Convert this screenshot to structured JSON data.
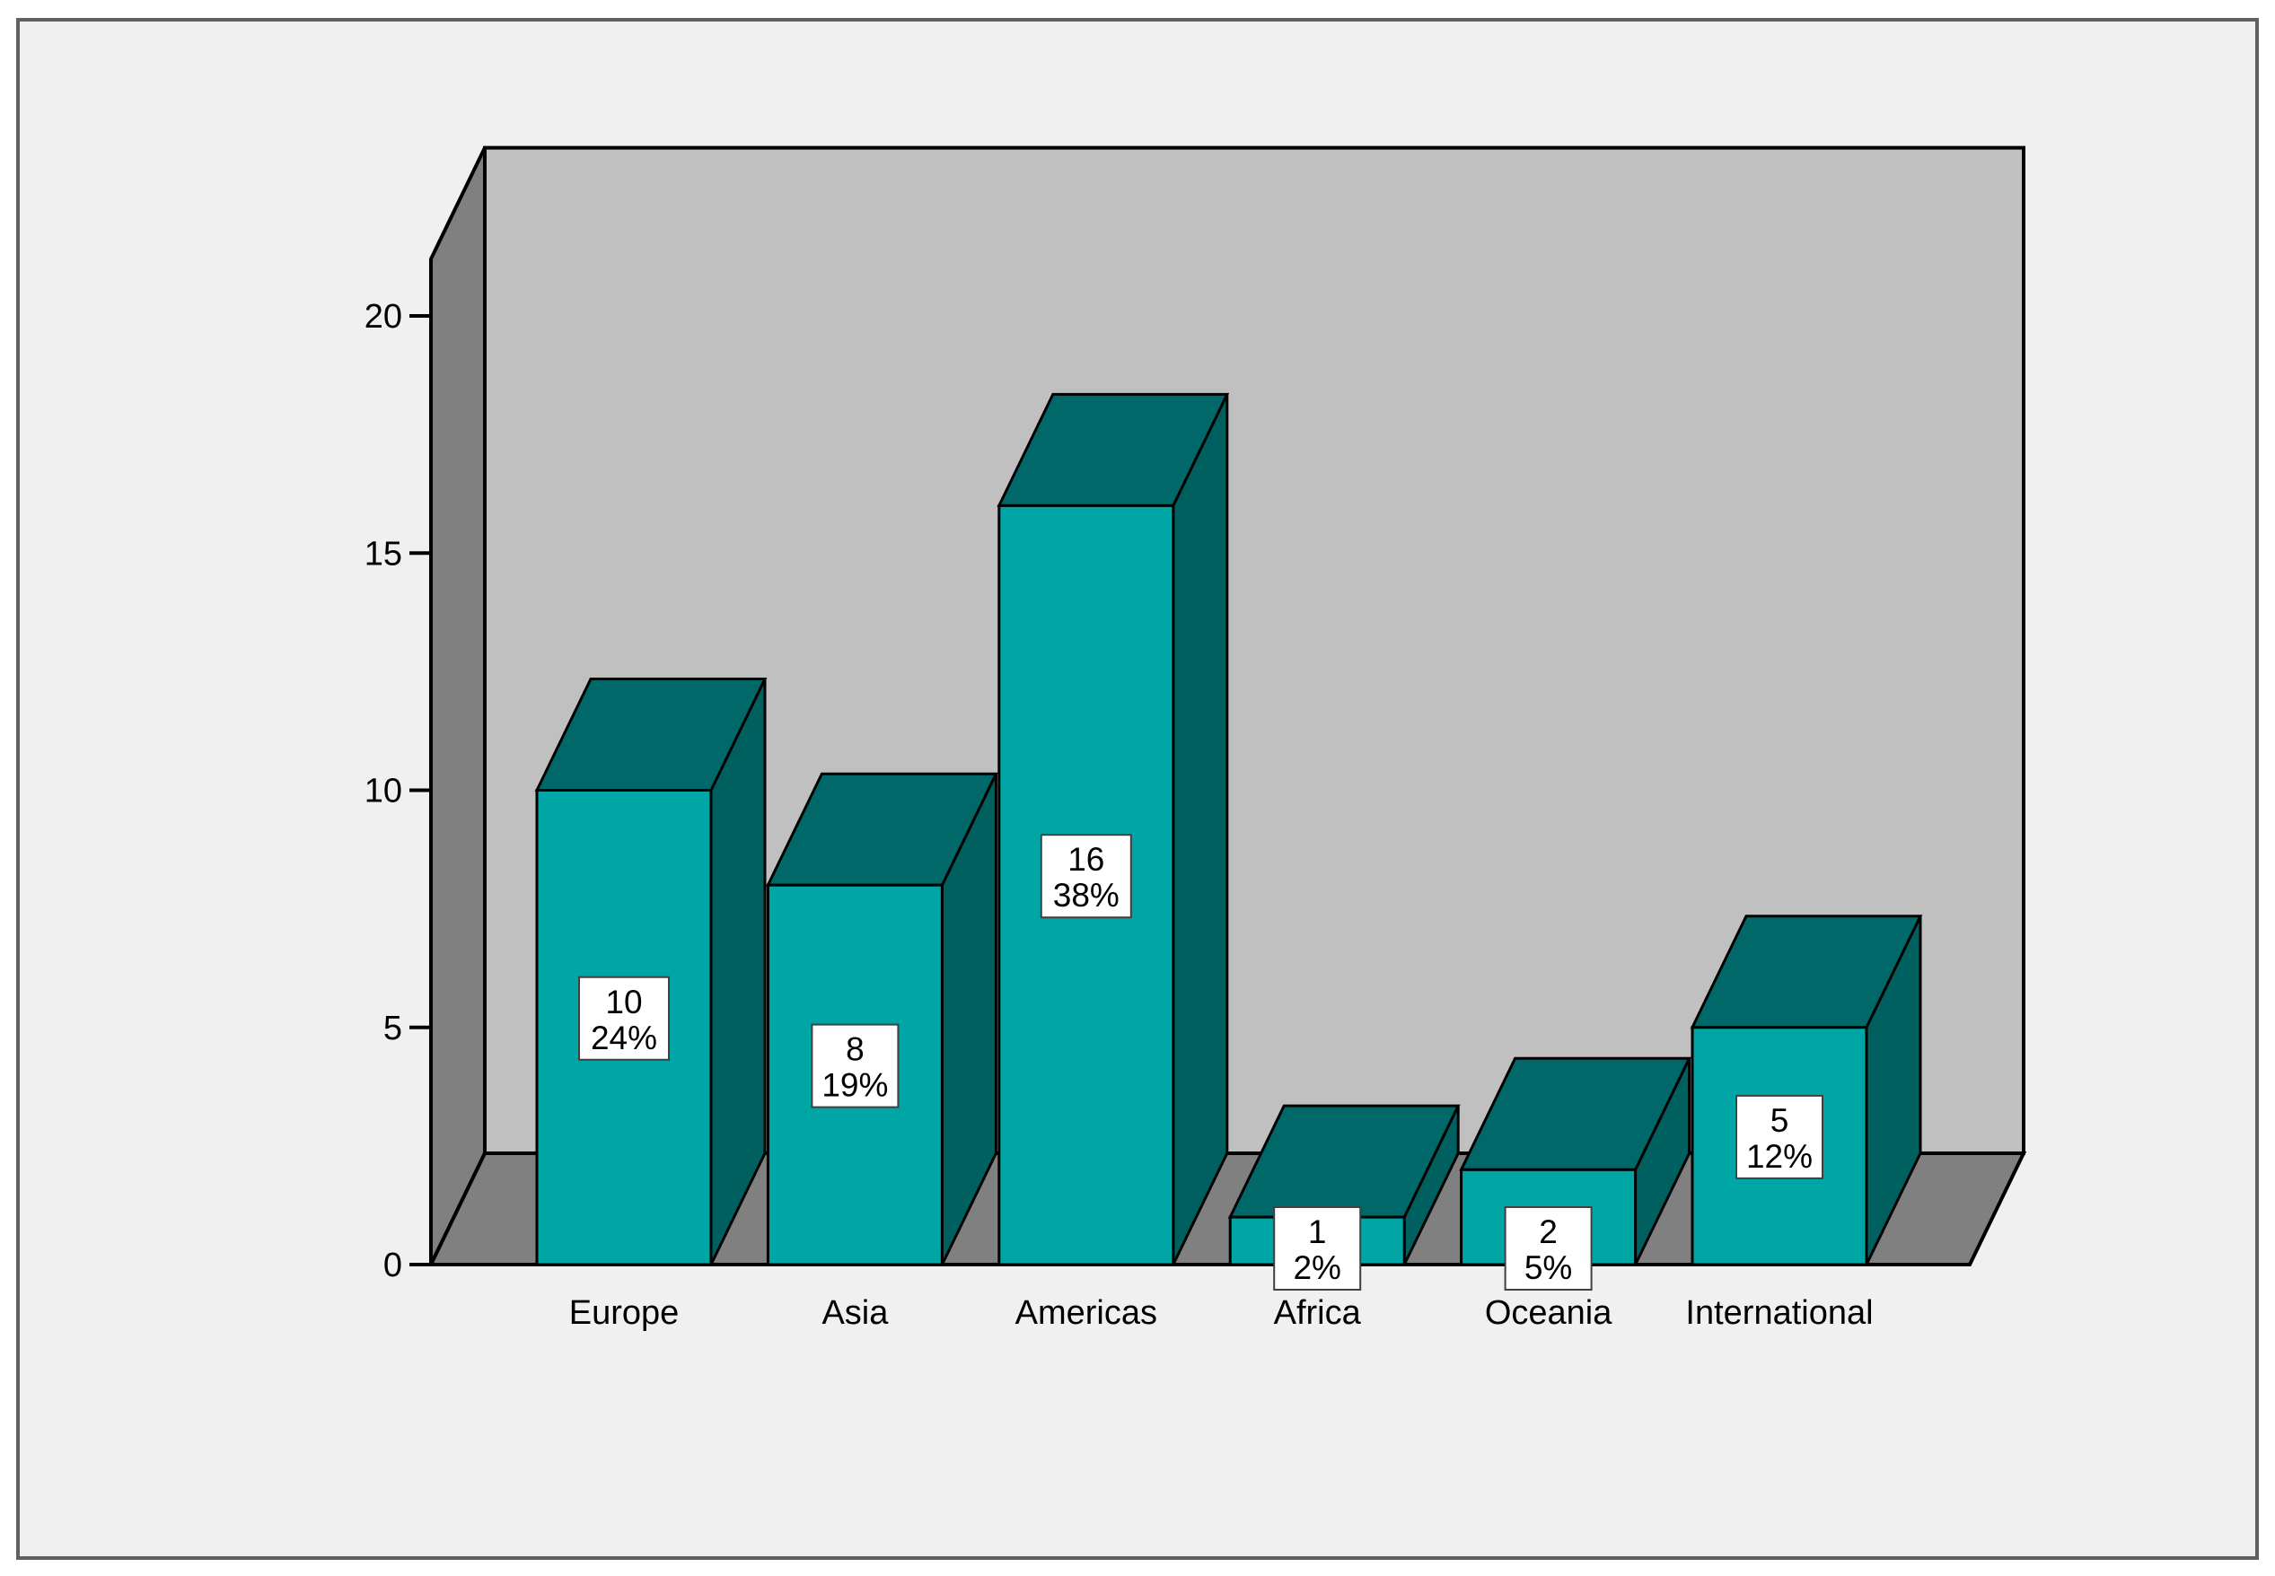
{
  "chart_data": {
    "type": "bar",
    "style": "3d",
    "categories": [
      "Europe",
      "Asia",
      "Americas",
      "Africa",
      "Oceania",
      "International"
    ],
    "values": [
      10,
      8,
      16,
      1,
      2,
      5
    ],
    "percent_labels": [
      "24%",
      "19%",
      "38%",
      "2%",
      "5%",
      "12%"
    ],
    "yticks": [
      0,
      5,
      10,
      15,
      20
    ],
    "ylim": [
      0,
      20
    ],
    "title": "",
    "xlabel": "",
    "ylabel": "",
    "grid": false,
    "legend": "none",
    "colors": {
      "page_background": "#f0f0f0",
      "back_wall": "#c0c0c0",
      "side_wall": "#808080",
      "floor": "#808080",
      "bar_front": "#00a6a6",
      "bar_top": "#006868",
      "bar_side": "#006060",
      "label_box": "#ffffff",
      "border": "#000000"
    }
  }
}
